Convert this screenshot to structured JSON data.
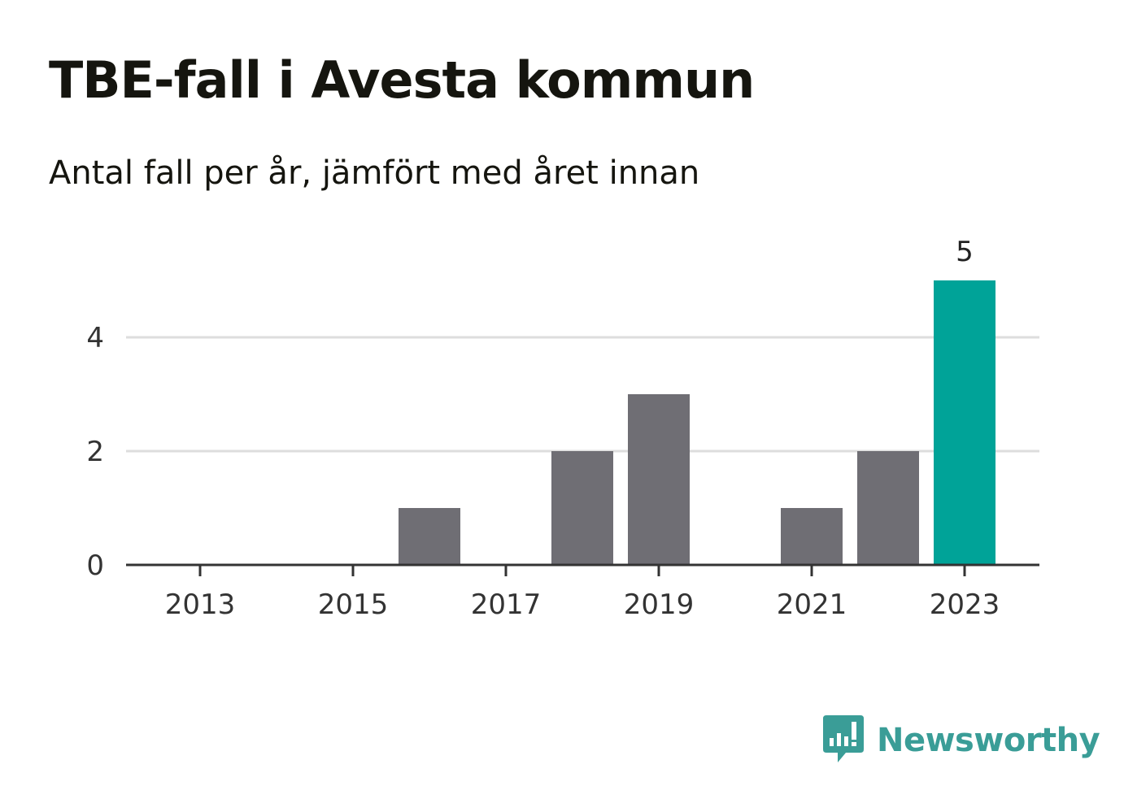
{
  "header": {
    "title": "TBE-fall i Avesta kommun",
    "subtitle": "Antal fall per år, jämfört med året innan"
  },
  "chart_data": {
    "type": "bar",
    "categories": [
      "2013",
      "2014",
      "2015",
      "2016",
      "2017",
      "2018",
      "2019",
      "2020",
      "2021",
      "2022",
      "2023"
    ],
    "values": [
      0,
      0,
      0,
      1,
      0,
      2,
      3,
      0,
      1,
      2,
      5
    ],
    "x_tick_labels": [
      "2013",
      "2015",
      "2017",
      "2019",
      "2021",
      "2023"
    ],
    "y_ticks": [
      0,
      2,
      4
    ],
    "ylim": [
      0,
      5
    ],
    "grid": true,
    "highlight_category": "2023",
    "highlight_label": "5",
    "colors": {
      "bar": "#6f6e74",
      "highlight": "#00a398",
      "grid": "#dddddd",
      "axis": "#333333"
    }
  },
  "brand": {
    "name": "Newsworthy",
    "icon": "newsworthy-logo-icon",
    "color": "#3a9d97"
  }
}
